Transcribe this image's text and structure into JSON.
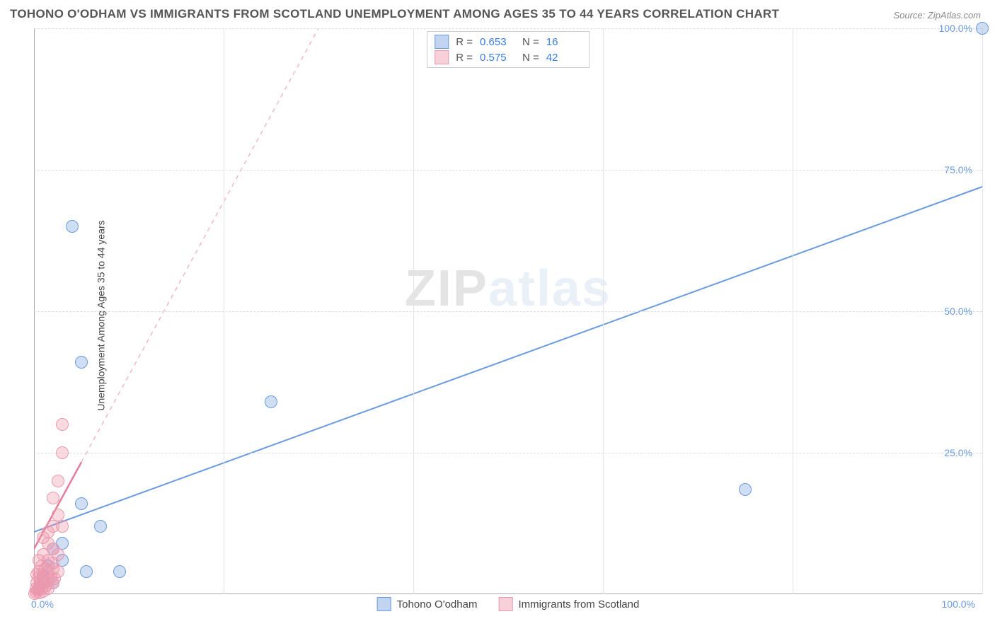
{
  "title": "TOHONO O'ODHAM VS IMMIGRANTS FROM SCOTLAND UNEMPLOYMENT AMONG AGES 35 TO 44 YEARS CORRELATION CHART",
  "source": "Source: ZipAtlas.com",
  "y_axis_label": "Unemployment Among Ages 35 to 44 years",
  "watermark_a": "ZIP",
  "watermark_b": "atlas",
  "chart": {
    "type": "scatter",
    "xlim": [
      0,
      100
    ],
    "ylim": [
      0,
      100
    ],
    "x_ticks": [
      0,
      20,
      40,
      60,
      80,
      100
    ],
    "y_ticks": [
      25,
      50,
      75,
      100
    ],
    "y_tick_labels": [
      "25.0%",
      "50.0%",
      "75.0%",
      "100.0%"
    ],
    "x_origin_label": "0.0%",
    "x_max_label": "100.0%",
    "background_color": "#ffffff",
    "grid_color": "#dddddd",
    "point_radius": 8,
    "series": [
      {
        "name": "Tohono O'odham",
        "color": "#6a9be0",
        "fill": "rgba(120,160,220,0.35)",
        "R": "0.653",
        "N": "16",
        "trend": {
          "x1": 0,
          "y1": 11,
          "x2": 100,
          "y2": 72,
          "dashed": false,
          "width": 2
        },
        "points": [
          {
            "x": 100,
            "y": 100
          },
          {
            "x": 75,
            "y": 18.5
          },
          {
            "x": 25,
            "y": 34
          },
          {
            "x": 4,
            "y": 65
          },
          {
            "x": 5,
            "y": 41
          },
          {
            "x": 5,
            "y": 16
          },
          {
            "x": 7,
            "y": 12
          },
          {
            "x": 3,
            "y": 9
          },
          {
            "x": 3,
            "y": 6
          },
          {
            "x": 5.5,
            "y": 4
          },
          {
            "x": 9,
            "y": 4
          },
          {
            "x": 2,
            "y": 8
          },
          {
            "x": 1.5,
            "y": 5
          },
          {
            "x": 1,
            "y": 3
          },
          {
            "x": 2,
            "y": 2
          },
          {
            "x": 0.5,
            "y": 1
          }
        ]
      },
      {
        "name": "Immigrants from Scotland",
        "color": "#e77a9a",
        "fill": "rgba(240,150,170,0.35)",
        "R": "0.575",
        "N": "42",
        "trend": {
          "x1": 0,
          "y1": 8,
          "x2": 30,
          "y2": 100,
          "dashed": true,
          "width": 1.5,
          "solid_to_x": 5
        },
        "points": [
          {
            "x": 3,
            "y": 30
          },
          {
            "x": 3,
            "y": 25
          },
          {
            "x": 2.5,
            "y": 20
          },
          {
            "x": 2,
            "y": 17
          },
          {
            "x": 2.5,
            "y": 14
          },
          {
            "x": 2,
            "y": 12
          },
          {
            "x": 3,
            "y": 12
          },
          {
            "x": 1.5,
            "y": 11
          },
          {
            "x": 1,
            "y": 10
          },
          {
            "x": 1.5,
            "y": 9
          },
          {
            "x": 2,
            "y": 8
          },
          {
            "x": 2.5,
            "y": 7
          },
          {
            "x": 1,
            "y": 7
          },
          {
            "x": 0.5,
            "y": 6
          },
          {
            "x": 1.5,
            "y": 6
          },
          {
            "x": 2,
            "y": 5.5
          },
          {
            "x": 0.8,
            "y": 5
          },
          {
            "x": 1.2,
            "y": 4.5
          },
          {
            "x": 2,
            "y": 4.5
          },
          {
            "x": 0.5,
            "y": 4
          },
          {
            "x": 1.5,
            "y": 4
          },
          {
            "x": 2.5,
            "y": 4
          },
          {
            "x": 0.3,
            "y": 3.5
          },
          {
            "x": 1,
            "y": 3.5
          },
          {
            "x": 1.8,
            "y": 3
          },
          {
            "x": 0.5,
            "y": 3
          },
          {
            "x": 2.2,
            "y": 2.8
          },
          {
            "x": 0.8,
            "y": 2.5
          },
          {
            "x": 1.5,
            "y": 2.5
          },
          {
            "x": 0.3,
            "y": 2
          },
          {
            "x": 1,
            "y": 2
          },
          {
            "x": 2,
            "y": 2
          },
          {
            "x": 0.6,
            "y": 1.5
          },
          {
            "x": 1.3,
            "y": 1.5
          },
          {
            "x": 0.2,
            "y": 1
          },
          {
            "x": 0.8,
            "y": 1
          },
          {
            "x": 1.5,
            "y": 1
          },
          {
            "x": 0.4,
            "y": 0.7
          },
          {
            "x": 1,
            "y": 0.5
          },
          {
            "x": 0.2,
            "y": 0.4
          },
          {
            "x": 0.6,
            "y": 0.3
          },
          {
            "x": 0.1,
            "y": 0.1
          }
        ]
      }
    ]
  },
  "legend_top": {
    "r_label": "R =",
    "n_label": "N ="
  },
  "legend_bottom": [
    {
      "swatch": "blue",
      "text": "Tohono O'odham"
    },
    {
      "swatch": "pink",
      "text": "Immigrants from Scotland"
    }
  ]
}
